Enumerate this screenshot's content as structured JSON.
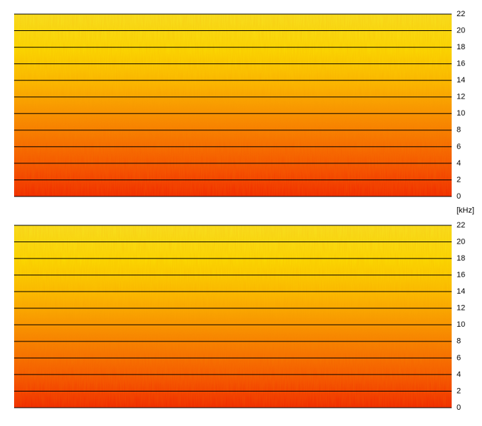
{
  "chart_data": [
    {
      "type": "spectrogram",
      "ylim": [
        0,
        22
      ],
      "yticks": [
        0,
        2,
        4,
        6,
        8,
        10,
        12,
        14,
        16,
        18,
        20,
        22
      ],
      "grid": true,
      "colormap": [
        "#f02800",
        "#f55500",
        "#f88a00",
        "#fbb800",
        "#fbd800",
        "#f8e020"
      ]
    },
    {
      "type": "spectrogram",
      "ylabel": "[kHz]",
      "ylim": [
        0,
        22
      ],
      "yticks": [
        0,
        2,
        4,
        6,
        8,
        10,
        12,
        14,
        16,
        18,
        20,
        22
      ],
      "grid": true,
      "colormap": [
        "#f02800",
        "#f55800",
        "#f88d00",
        "#fbba00",
        "#fbd800",
        "#f8e020"
      ]
    }
  ]
}
